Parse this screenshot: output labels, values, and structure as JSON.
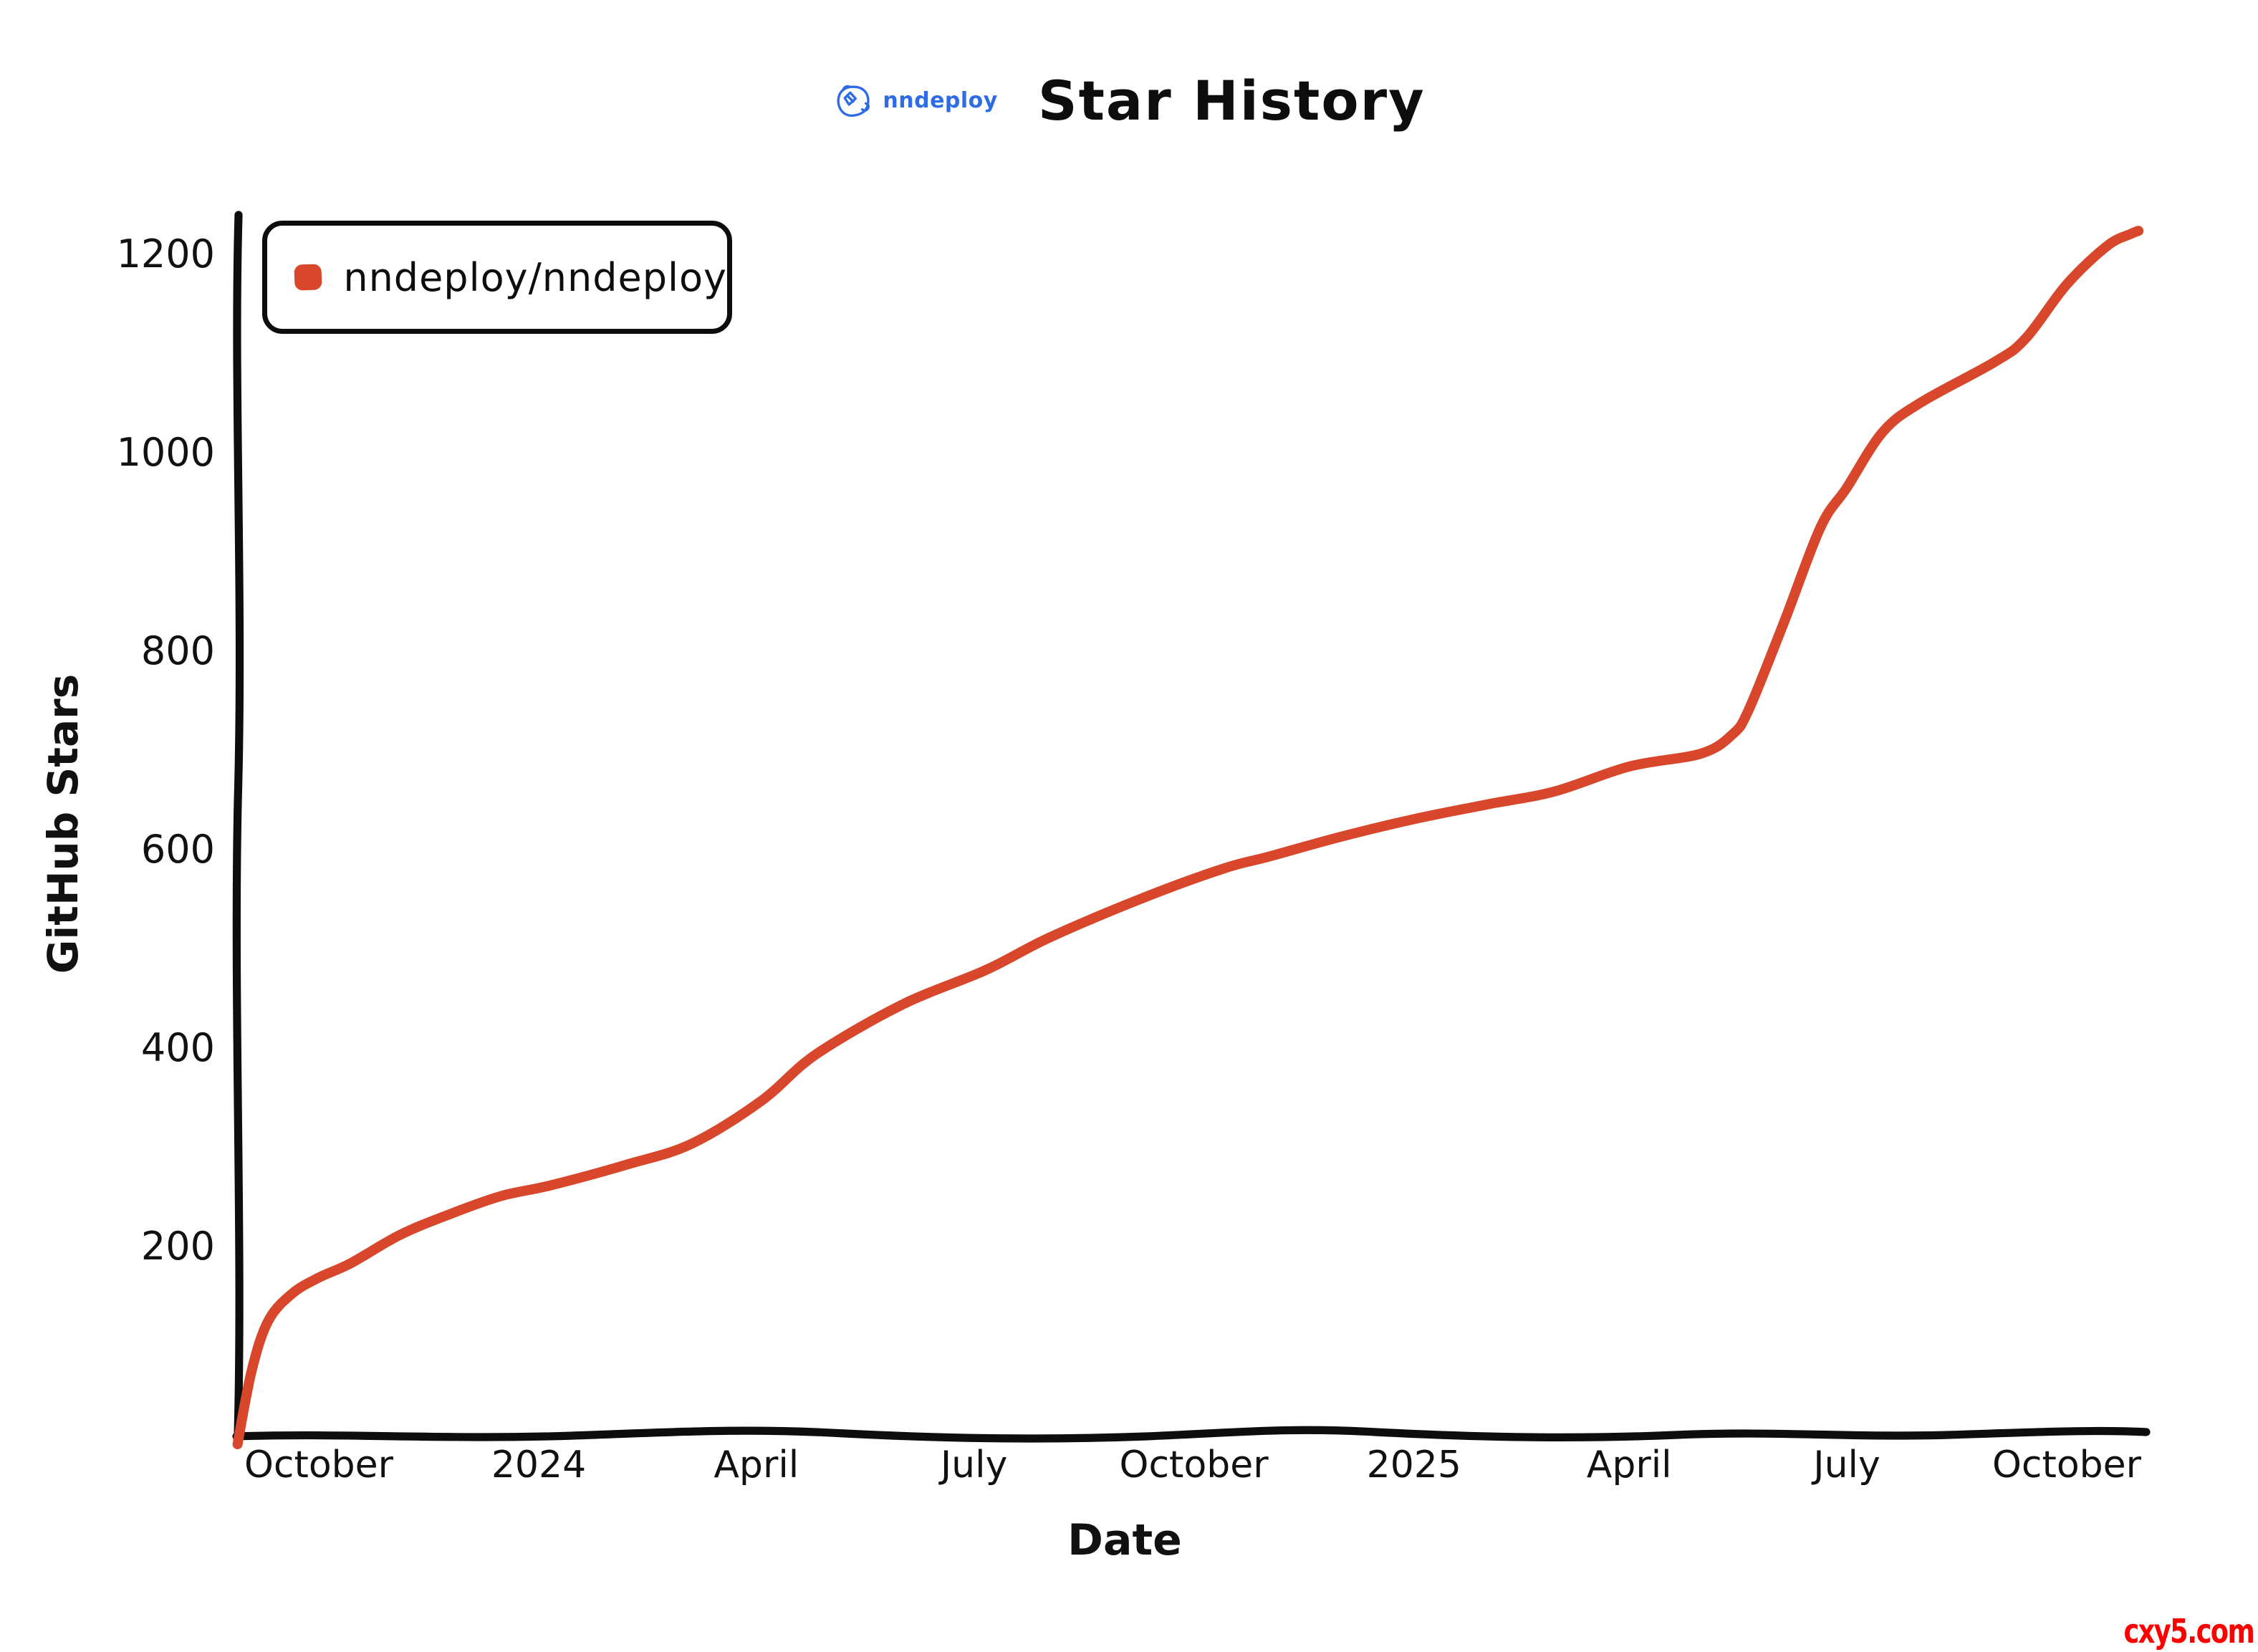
{
  "title": "Star History",
  "logo": {
    "text": "nndeploy",
    "color": "#2e6be5"
  },
  "legend": {
    "items": [
      {
        "label": "nndeploy/nndeploy",
        "color": "#d8472b"
      }
    ]
  },
  "watermark": "cxy5.com",
  "colors": {
    "axis": "#0d0d0d",
    "series": "#d8472b",
    "background": "#ffffff"
  },
  "chart_data": {
    "type": "line",
    "title": "Star History",
    "xlabel": "Date",
    "ylabel": "GitHub Stars",
    "grid": false,
    "legend_position": "top-left",
    "ylim": [
      0,
      1240
    ],
    "x_range": [
      "2023-08-28",
      "2025-11-02"
    ],
    "y_ticks": [
      200,
      400,
      600,
      800,
      1000,
      1200
    ],
    "x_ticks": [
      {
        "label": "October",
        "date": "2023-10-01"
      },
      {
        "label": "2024",
        "date": "2024-01-01"
      },
      {
        "label": "April",
        "date": "2024-04-01"
      },
      {
        "label": "July",
        "date": "2024-07-01"
      },
      {
        "label": "October",
        "date": "2024-10-01"
      },
      {
        "label": "2025",
        "date": "2025-01-01"
      },
      {
        "label": "April",
        "date": "2025-04-01"
      },
      {
        "label": "July",
        "date": "2025-07-01"
      },
      {
        "label": "October",
        "date": "2025-10-01"
      }
    ],
    "series": [
      {
        "name": "nndeploy/nndeploy",
        "color": "#d8472b",
        "points": [
          [
            "2023-08-28",
            0
          ],
          [
            "2023-09-03",
            75
          ],
          [
            "2023-09-10",
            125
          ],
          [
            "2023-09-20",
            152
          ],
          [
            "2023-10-01",
            168
          ],
          [
            "2023-10-14",
            182
          ],
          [
            "2023-11-04",
            211
          ],
          [
            "2023-11-25",
            232
          ],
          [
            "2023-12-16",
            250
          ],
          [
            "2024-01-06",
            261
          ],
          [
            "2024-02-07",
            282
          ],
          [
            "2024-03-05",
            303
          ],
          [
            "2024-04-03",
            346
          ],
          [
            "2024-04-26",
            393
          ],
          [
            "2024-06-01",
            443
          ],
          [
            "2024-07-06",
            478
          ],
          [
            "2024-08-01",
            510
          ],
          [
            "2024-09-07",
            548
          ],
          [
            "2024-10-13",
            580
          ],
          [
            "2024-11-01",
            592
          ],
          [
            "2024-12-01",
            612
          ],
          [
            "2025-01-01",
            630
          ],
          [
            "2025-02-01",
            645
          ],
          [
            "2025-03-01",
            658
          ],
          [
            "2025-04-01",
            683
          ],
          [
            "2025-05-01",
            696
          ],
          [
            "2025-05-14",
            715
          ],
          [
            "2025-05-21",
            740
          ],
          [
            "2025-06-05",
            830
          ],
          [
            "2025-06-20",
            924
          ],
          [
            "2025-07-01",
            964
          ],
          [
            "2025-07-16",
            1020
          ],
          [
            "2025-08-01",
            1050
          ],
          [
            "2025-09-01",
            1091
          ],
          [
            "2025-09-14",
            1115
          ],
          [
            "2025-10-01",
            1169
          ],
          [
            "2025-10-18",
            1208
          ],
          [
            "2025-10-28",
            1220
          ],
          [
            "2025-10-31",
            1223
          ]
        ]
      }
    ]
  }
}
